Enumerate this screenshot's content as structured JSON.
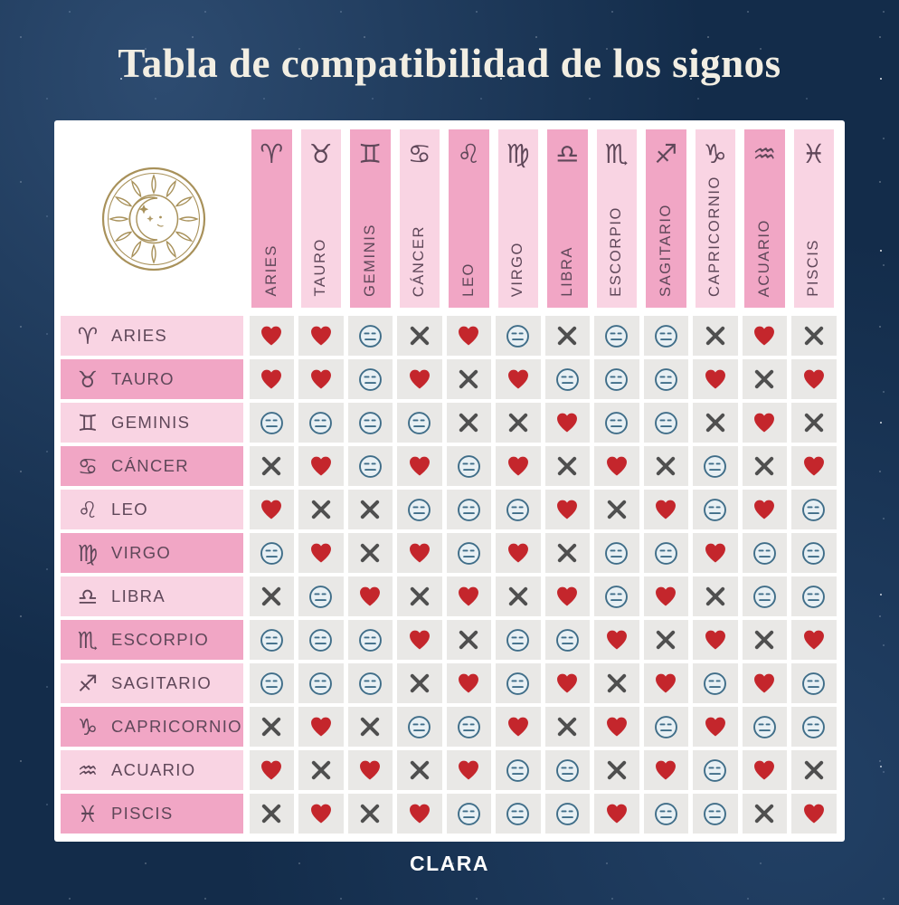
{
  "title": "Tabla de compatibilidad de los signos",
  "footer": {
    "brand": "CLARA"
  },
  "logo": {
    "name": "sun-moon-logo",
    "color": "#a8915a"
  },
  "colors": {
    "background_navy": "#132c4a",
    "panel_white": "#ffffff",
    "pink_dark": "#f1a6c5",
    "pink_light": "#f9d4e3",
    "cell_grey": "#e9e8e6",
    "heart_red": "#c4262c",
    "x_grey": "#4f4f4f",
    "face_stroke_blue": "#3f6d88",
    "face_fill_blue": "#e8f0f4",
    "label_mauve": "#5f4759",
    "title_cream": "#f2eee3"
  },
  "signs": [
    {
      "name": "ARIES",
      "symbol": "♈"
    },
    {
      "name": "TAURO",
      "symbol": "♉"
    },
    {
      "name": "GEMINIS",
      "symbol": "♊"
    },
    {
      "name": "CÁNCER",
      "symbol": "♋"
    },
    {
      "name": "LEO",
      "symbol": "♌"
    },
    {
      "name": "VIRGO",
      "symbol": "♍"
    },
    {
      "name": "LIBRA",
      "symbol": "♎"
    },
    {
      "name": "ESCORPIO",
      "symbol": "♏"
    },
    {
      "name": "SAGITARIO",
      "symbol": "♐"
    },
    {
      "name": "CAPRICORNIO",
      "symbol": "♑"
    },
    {
      "name": "ACUARIO",
      "symbol": "♒"
    },
    {
      "name": "PISCIS",
      "symbol": "♓"
    }
  ],
  "chart_data": {
    "type": "table",
    "title": "Tabla de compatibilidad de los signos",
    "legend": {
      "H": "corazón (alta compatibilidad)",
      "N": "cara neutral (compatibilidad media)",
      "X": "cruz (incompatible)"
    },
    "columns": [
      "ARIES",
      "TAURO",
      "GEMINIS",
      "CÁNCER",
      "LEO",
      "VIRGO",
      "LIBRA",
      "ESCORPIO",
      "SAGITARIO",
      "CAPRICORNIO",
      "ACUARIO",
      "PISCIS"
    ],
    "rows": [
      "ARIES",
      "TAURO",
      "GEMINIS",
      "CÁNCER",
      "LEO",
      "VIRGO",
      "LIBRA",
      "ESCORPIO",
      "SAGITARIO",
      "CAPRICORNIO",
      "ACUARIO",
      "PISCIS"
    ],
    "matrix": [
      [
        "H",
        "H",
        "N",
        "X",
        "H",
        "N",
        "X",
        "N",
        "N",
        "X",
        "H",
        "X"
      ],
      [
        "H",
        "H",
        "N",
        "H",
        "X",
        "H",
        "N",
        "N",
        "N",
        "H",
        "X",
        "H"
      ],
      [
        "N",
        "N",
        "N",
        "N",
        "X",
        "X",
        "H",
        "N",
        "N",
        "X",
        "H",
        "X"
      ],
      [
        "X",
        "H",
        "N",
        "H",
        "N",
        "H",
        "X",
        "H",
        "X",
        "N",
        "X",
        "H"
      ],
      [
        "H",
        "X",
        "X",
        "N",
        "N",
        "N",
        "H",
        "X",
        "H",
        "N",
        "H",
        "N"
      ],
      [
        "N",
        "H",
        "X",
        "H",
        "N",
        "H",
        "X",
        "N",
        "N",
        "H",
        "N",
        "N"
      ],
      [
        "X",
        "N",
        "H",
        "X",
        "H",
        "X",
        "H",
        "N",
        "H",
        "X",
        "N",
        "N"
      ],
      [
        "N",
        "N",
        "N",
        "H",
        "X",
        "N",
        "N",
        "H",
        "X",
        "H",
        "X",
        "H"
      ],
      [
        "N",
        "N",
        "N",
        "X",
        "H",
        "N",
        "H",
        "X",
        "H",
        "N",
        "H",
        "N"
      ],
      [
        "X",
        "H",
        "X",
        "N",
        "N",
        "H",
        "X",
        "H",
        "N",
        "H",
        "N",
        "N"
      ],
      [
        "H",
        "X",
        "H",
        "X",
        "H",
        "N",
        "N",
        "X",
        "H",
        "N",
        "H",
        "X"
      ],
      [
        "X",
        "H",
        "X",
        "H",
        "N",
        "N",
        "N",
        "H",
        "N",
        "N",
        "X",
        "H"
      ]
    ]
  }
}
